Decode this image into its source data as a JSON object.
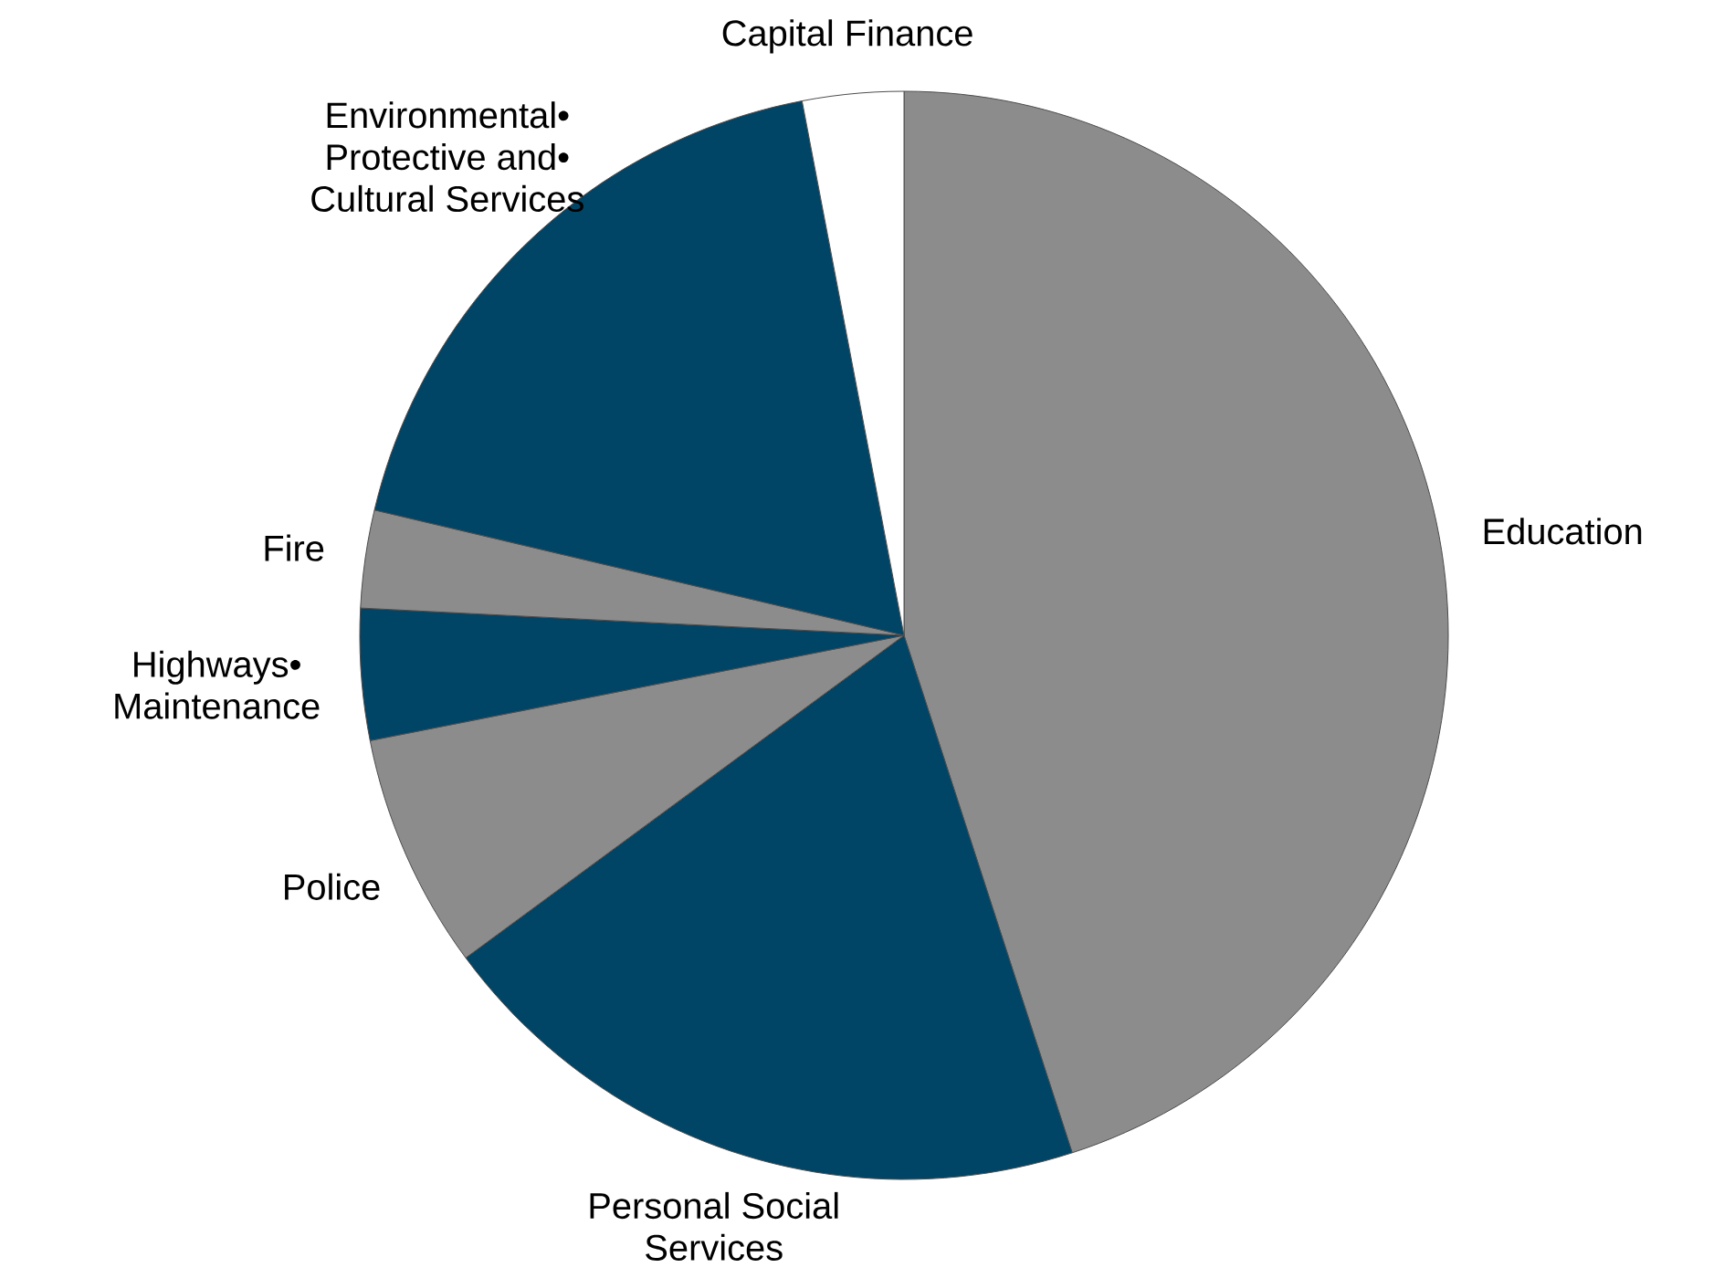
{
  "chart_data": {
    "type": "pie",
    "categories": [
      "Education",
      "Personal Social Services",
      "Police",
      "Highways• Maintenance",
      "Fire",
      "Environmental• Protective and• Cultural Services",
      "Capital Finance"
    ],
    "values": [
      45,
      19.9,
      7,
      3.9,
      2.9,
      18.3,
      3
    ],
    "colors": [
      "#8c8c8c",
      "#004466",
      "#8c8c8c",
      "#004466",
      "#8c8c8c",
      "#004466",
      "#ffffff"
    ]
  }
}
